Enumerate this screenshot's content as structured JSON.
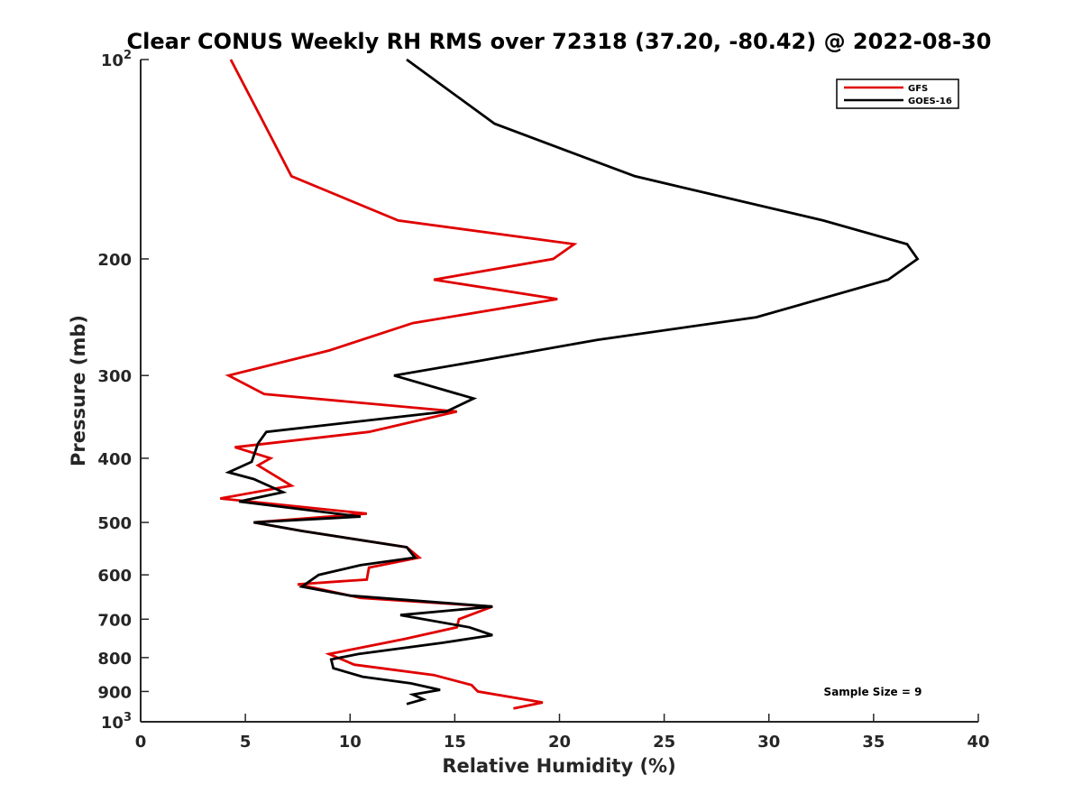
{
  "chart_data": {
    "type": "line",
    "title": "Clear CONUS Weekly RH RMS over 72318 (37.20, -80.42) @ 2022-08-30",
    "xlabel": "Relative Humidity (%)",
    "ylabel": "Pressure (mb)",
    "xlim": [
      0,
      40
    ],
    "ylim": [
      100,
      1000
    ],
    "y_scale": "log",
    "y_reversed": true,
    "x_ticks": [
      "0",
      "5",
      "10",
      "15",
      "20",
      "25",
      "30",
      "35",
      "40"
    ],
    "y_ticks": [
      {
        "value": 100,
        "base": "10",
        "exp": "2"
      },
      {
        "value": 200,
        "label": "200"
      },
      {
        "value": 300,
        "label": "300"
      },
      {
        "value": 400,
        "label": "400"
      },
      {
        "value": 500,
        "label": "500"
      },
      {
        "value": 600,
        "label": "600"
      },
      {
        "value": 700,
        "label": "700"
      },
      {
        "value": 800,
        "label": "800"
      },
      {
        "value": 900,
        "label": "900"
      },
      {
        "value": 1000,
        "base": "10",
        "exp": "3"
      }
    ],
    "legend_position": "top-right",
    "annotation": "Sample Size = 9",
    "series": [
      {
        "name": "GFS",
        "color": "#e00000",
        "points": [
          [
            4.3,
            100
          ],
          [
            5.9,
            125
          ],
          [
            7.2,
            150
          ],
          [
            12.3,
            175
          ],
          [
            20.7,
            190
          ],
          [
            19.7,
            200
          ],
          [
            14.0,
            215
          ],
          [
            19.9,
            230
          ],
          [
            13.0,
            250
          ],
          [
            9.0,
            275
          ],
          [
            4.2,
            300
          ],
          [
            5.9,
            320
          ],
          [
            15.1,
            340
          ],
          [
            10.9,
            365
          ],
          [
            4.5,
            385
          ],
          [
            6.2,
            400
          ],
          [
            5.6,
            410
          ],
          [
            7.2,
            440
          ],
          [
            3.8,
            460
          ],
          [
            10.8,
            485
          ],
          [
            5.4,
            500
          ],
          [
            7.7,
            515
          ],
          [
            12.7,
            545
          ],
          [
            13.3,
            565
          ],
          [
            10.9,
            585
          ],
          [
            10.8,
            610
          ],
          [
            7.5,
            620
          ],
          [
            10.5,
            650
          ],
          [
            16.8,
            670
          ],
          [
            15.2,
            700
          ],
          [
            15.1,
            720
          ],
          [
            12.6,
            750
          ],
          [
            9.0,
            790
          ],
          [
            10.2,
            820
          ],
          [
            14.0,
            850
          ],
          [
            15.8,
            880
          ],
          [
            16.1,
            900
          ],
          [
            19.2,
            935
          ],
          [
            17.8,
            955
          ]
        ]
      },
      {
        "name": "GOES-16",
        "color": "#000000",
        "points": [
          [
            12.7,
            100
          ],
          [
            16.9,
            125
          ],
          [
            23.6,
            150
          ],
          [
            32.6,
            175
          ],
          [
            36.6,
            190
          ],
          [
            37.1,
            200
          ],
          [
            35.7,
            215
          ],
          [
            29.4,
            245
          ],
          [
            21.8,
            265
          ],
          [
            16.2,
            285
          ],
          [
            12.1,
            300
          ],
          [
            15.9,
            325
          ],
          [
            14.6,
            340
          ],
          [
            6.0,
            365
          ],
          [
            5.6,
            380
          ],
          [
            5.3,
            405
          ],
          [
            4.2,
            420
          ],
          [
            5.4,
            430
          ],
          [
            6.8,
            450
          ],
          [
            4.7,
            465
          ],
          [
            10.5,
            490
          ],
          [
            5.4,
            500
          ],
          [
            7.7,
            515
          ],
          [
            12.7,
            545
          ],
          [
            13.1,
            565
          ],
          [
            10.5,
            580
          ],
          [
            8.5,
            600
          ],
          [
            7.7,
            625
          ],
          [
            10.0,
            645
          ],
          [
            16.8,
            670
          ],
          [
            12.4,
            690
          ],
          [
            15.7,
            720
          ],
          [
            16.8,
            740
          ],
          [
            14.4,
            760
          ],
          [
            10.4,
            790
          ],
          [
            9.1,
            805
          ],
          [
            9.2,
            830
          ],
          [
            10.6,
            855
          ],
          [
            12.9,
            875
          ],
          [
            14.3,
            895
          ],
          [
            13.0,
            910
          ],
          [
            13.5,
            925
          ],
          [
            12.7,
            940
          ]
        ]
      }
    ]
  }
}
